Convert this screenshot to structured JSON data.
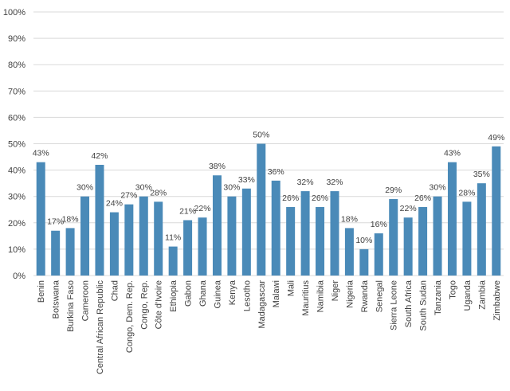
{
  "chart_data": {
    "type": "bar",
    "categories": [
      "Benin",
      "Botswana",
      "Burkina Faso",
      "Cameroon",
      "Central African Republic",
      "Chad",
      "Congo, Dem. Rep.",
      "Congo, Rep.",
      "Côte d'Ivoire",
      "Ethiopia",
      "Gabon",
      "Ghana",
      "Guinea",
      "Kenya",
      "Lesotho",
      "Madagascar",
      "Malawi",
      "Mali",
      "Mauritius",
      "Namibia",
      "Niger",
      "Nigeria",
      "Rwanda",
      "Senegal",
      "Sierra Leone",
      "South Africa",
      "South Sudan",
      "Tanzania",
      "Togo",
      "Uganda",
      "Zambia",
      "Zimbabwe"
    ],
    "values": [
      43,
      17,
      18,
      30,
      42,
      24,
      27,
      30,
      28,
      11,
      21,
      22,
      38,
      30,
      33,
      50,
      36,
      26,
      32,
      26,
      32,
      18,
      10,
      16,
      29,
      22,
      26,
      30,
      43,
      28,
      35,
      49
    ],
    "value_labels": [
      "43%",
      "17%",
      "18%",
      "30%",
      "42%",
      "24%",
      "27%",
      "30%",
      "28%",
      "11%",
      "21%",
      "22%",
      "38%",
      "30%",
      "33%",
      "50%",
      "36%",
      "26%",
      "32%",
      "26%",
      "32%",
      "18%",
      "10%",
      "16%",
      "29%",
      "22%",
      "26%",
      "30%",
      "43%",
      "28%",
      "35%",
      "49%"
    ],
    "color": "#4a8ab8",
    "ylim": [
      0,
      100
    ],
    "yticks": [
      {
        "value": 0,
        "label": "0%"
      },
      {
        "value": 10,
        "label": "10%"
      },
      {
        "value": 20,
        "label": "20%"
      },
      {
        "value": 30,
        "label": "30%"
      },
      {
        "value": 40,
        "label": "40%"
      },
      {
        "value": 50,
        "label": "50%"
      },
      {
        "value": 60,
        "label": "60%"
      },
      {
        "value": 70,
        "label": "70%"
      },
      {
        "value": 80,
        "label": "80%"
      },
      {
        "value": 90,
        "label": "90%"
      },
      {
        "value": 100,
        "label": "100%"
      }
    ],
    "grid": true
  }
}
